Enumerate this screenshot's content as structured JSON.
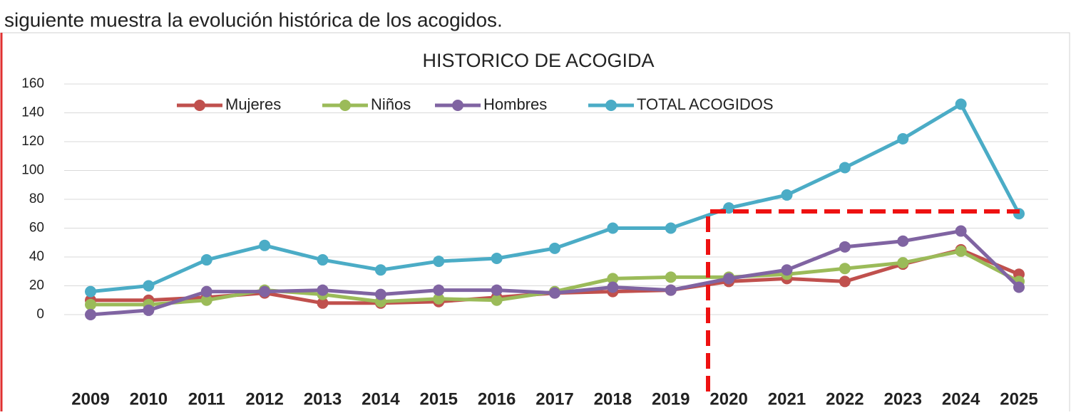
{
  "caption": "siguiente muestra la evolución histórica de los acogidos.",
  "chart_data": {
    "type": "line",
    "title": "HISTORICO DE ACOGIDA",
    "categories": [
      "2009",
      "2010",
      "2011",
      "2012",
      "2013",
      "2014",
      "2015",
      "2016",
      "2017",
      "2018",
      "2019",
      "2020",
      "2021",
      "2022",
      "2023",
      "2024",
      "2025"
    ],
    "series": [
      {
        "name": "Mujeres",
        "color": "#c0504d",
        "values": [
          10,
          10,
          12,
          15,
          8,
          8,
          9,
          12,
          15,
          16,
          17,
          23,
          25,
          23,
          35,
          45,
          28
        ]
      },
      {
        "name": "Niños",
        "color": "#9bbb59",
        "values": [
          7,
          7,
          10,
          17,
          14,
          9,
          11,
          10,
          16,
          25,
          26,
          26,
          28,
          32,
          36,
          44,
          23
        ]
      },
      {
        "name": "Hombres",
        "color": "#8064a2",
        "values": [
          0,
          3,
          16,
          16,
          17,
          14,
          17,
          17,
          15,
          19,
          17,
          25,
          31,
          47,
          51,
          58,
          19
        ]
      },
      {
        "name": "TOTAL ACOGIDOS",
        "color": "#4bacc6",
        "values": [
          16,
          20,
          38,
          48,
          38,
          31,
          37,
          39,
          46,
          60,
          60,
          74,
          83,
          102,
          122,
          146,
          70
        ]
      }
    ],
    "ylim": [
      0,
      160
    ],
    "yticks": [
      0,
      20,
      40,
      60,
      80,
      100,
      120,
      140,
      160
    ],
    "grid": true,
    "legend": "top"
  }
}
